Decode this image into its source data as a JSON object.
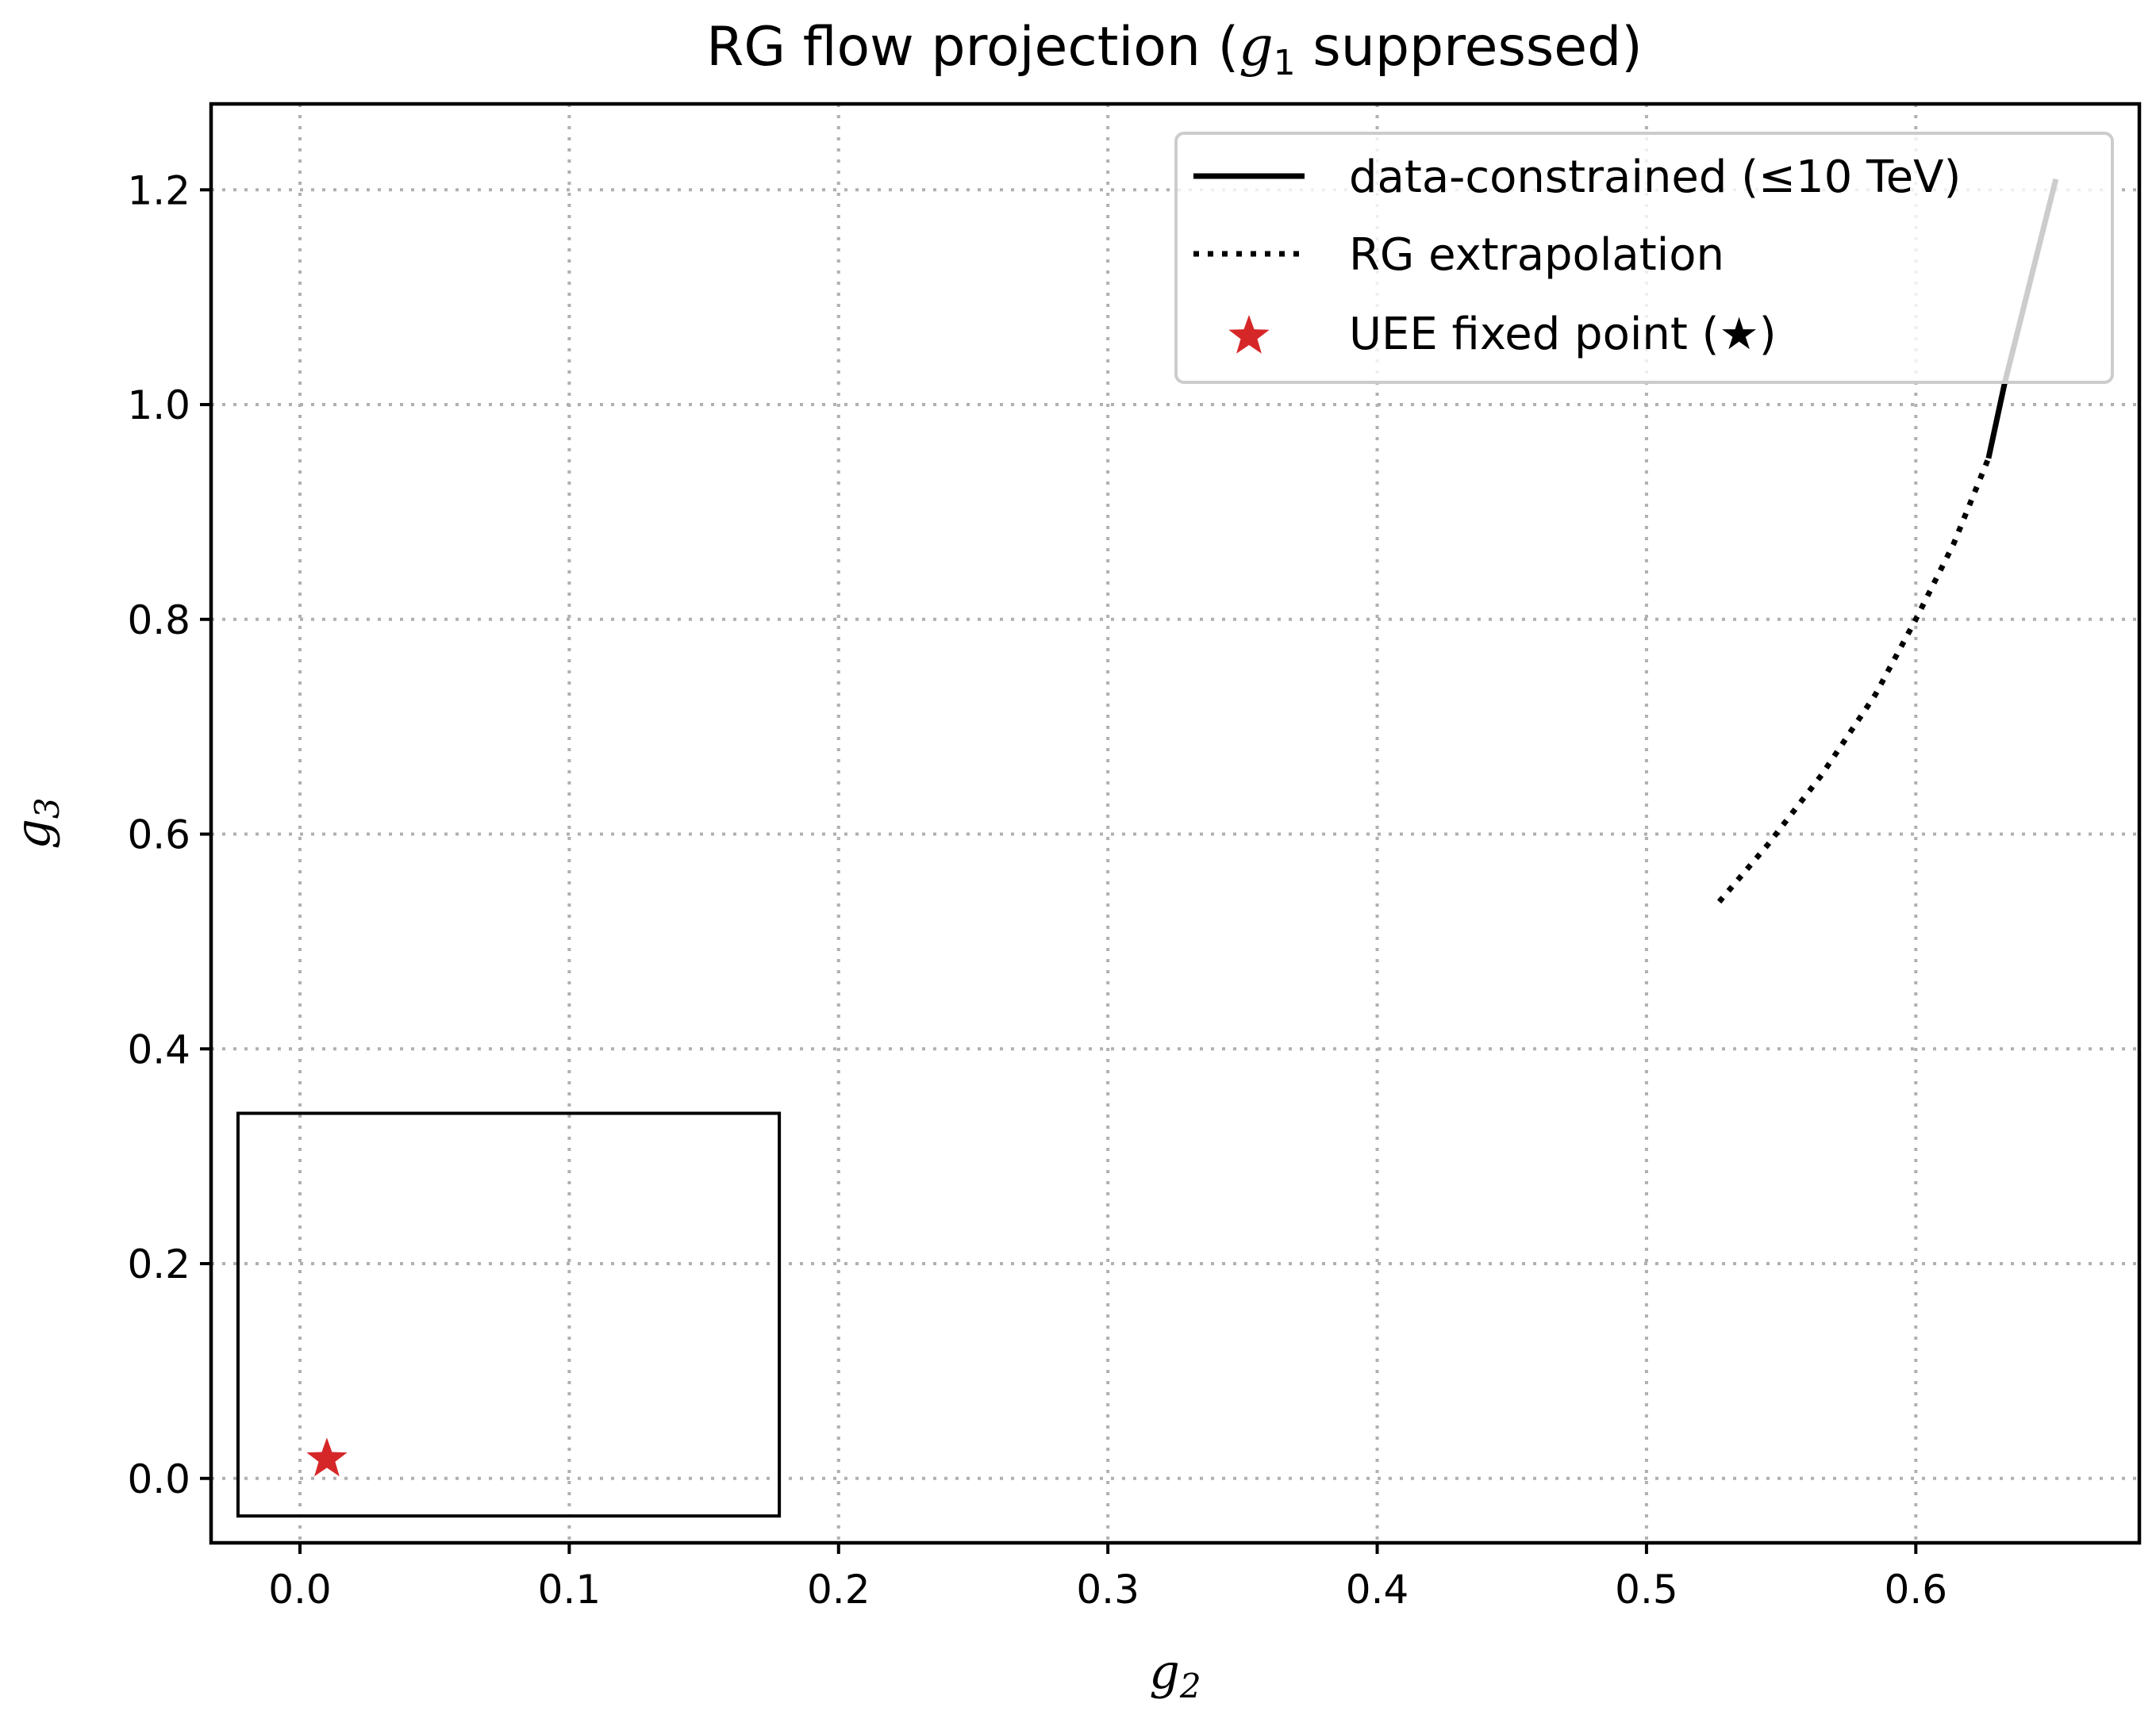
{
  "chart_data": {
    "type": "line",
    "title": "RG flow projection  (g₁ suppressed)",
    "title_parts": {
      "prefix": "RG flow projection  (",
      "var": "g",
      "sub": "1",
      "suffix": " suppressed)"
    },
    "xlabel": {
      "var": "g",
      "sub": "2"
    },
    "ylabel": {
      "var": "g",
      "sub": "3"
    },
    "xlim": [
      -0.033,
      0.683
    ],
    "ylim": [
      -0.06,
      1.28
    ],
    "xticks": [
      0.0,
      0.1,
      0.2,
      0.3,
      0.4,
      0.5,
      0.6
    ],
    "xtick_labels": [
      "0.0",
      "0.1",
      "0.2",
      "0.3",
      "0.4",
      "0.5",
      "0.6"
    ],
    "yticks": [
      0.0,
      0.2,
      0.4,
      0.6,
      0.8,
      1.0,
      1.2
    ],
    "ytick_labels": [
      "0.0",
      "0.2",
      "0.4",
      "0.6",
      "0.8",
      "1.0",
      "1.2"
    ],
    "grid": true,
    "legend_position": "top-right",
    "series": [
      {
        "name": "data-constrained (≤10 TeV)",
        "style": "solid",
        "color": "#000000",
        "x": [
          0.627,
          0.63,
          0.633,
          0.638,
          0.643,
          0.648,
          0.652
        ],
        "y": [
          0.95,
          0.985,
          1.02,
          1.07,
          1.12,
          1.17,
          1.21
        ]
      },
      {
        "name": "RG extrapolation",
        "style": "dotted",
        "color": "#000000",
        "x": [
          0.527,
          0.545,
          0.565,
          0.585,
          0.6,
          0.614,
          0.627
        ],
        "y": [
          0.537,
          0.59,
          0.655,
          0.73,
          0.8,
          0.87,
          0.95
        ]
      },
      {
        "name": "UEE fixed point (★)",
        "style": "marker",
        "marker": "star",
        "color": "#d62728",
        "x": [
          0.01
        ],
        "y": [
          0.018
        ]
      }
    ],
    "inset_box": {
      "x0": -0.023,
      "x1": 0.178,
      "y0": -0.035,
      "y1": 0.34
    }
  }
}
